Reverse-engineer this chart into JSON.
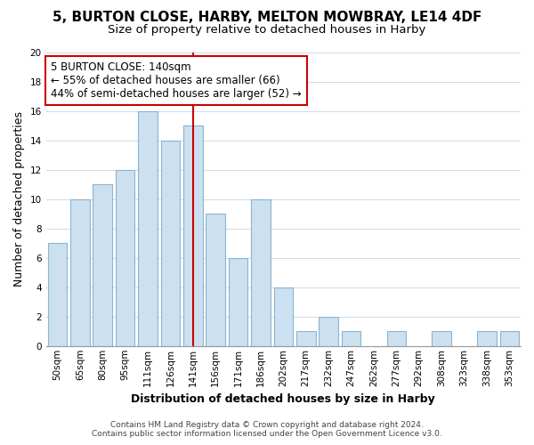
{
  "title": "5, BURTON CLOSE, HARBY, MELTON MOWBRAY, LE14 4DF",
  "subtitle": "Size of property relative to detached houses in Harby",
  "xlabel": "Distribution of detached houses by size in Harby",
  "ylabel": "Number of detached properties",
  "bin_labels": [
    "50sqm",
    "65sqm",
    "80sqm",
    "95sqm",
    "111sqm",
    "126sqm",
    "141sqm",
    "156sqm",
    "171sqm",
    "186sqm",
    "202sqm",
    "217sqm",
    "232sqm",
    "247sqm",
    "262sqm",
    "277sqm",
    "292sqm",
    "308sqm",
    "323sqm",
    "338sqm",
    "353sqm"
  ],
  "counts": [
    7,
    10,
    11,
    12,
    16,
    14,
    15,
    9,
    6,
    10,
    4,
    1,
    2,
    1,
    0,
    1,
    0,
    1,
    0,
    1,
    1
  ],
  "bar_color": "#cce0f0",
  "bar_edge_color": "#8ab4d4",
  "reference_bar_index": 6,
  "reference_line_color": "#cc0000",
  "annotation_text": "5 BURTON CLOSE: 140sqm\n← 55% of detached houses are smaller (66)\n44% of semi-detached houses are larger (52) →",
  "annotation_box_color": "#ffffff",
  "annotation_box_edge": "#cc0000",
  "ylim": [
    0,
    20
  ],
  "yticks": [
    0,
    2,
    4,
    6,
    8,
    10,
    12,
    14,
    16,
    18,
    20
  ],
  "footer1": "Contains HM Land Registry data © Crown copyright and database right 2024.",
  "footer2": "Contains public sector information licensed under the Open Government Licence v3.0.",
  "title_fontsize": 11,
  "subtitle_fontsize": 9.5,
  "axis_label_fontsize": 9,
  "tick_fontsize": 7.5,
  "annotation_fontsize": 8.5,
  "footer_fontsize": 6.5
}
